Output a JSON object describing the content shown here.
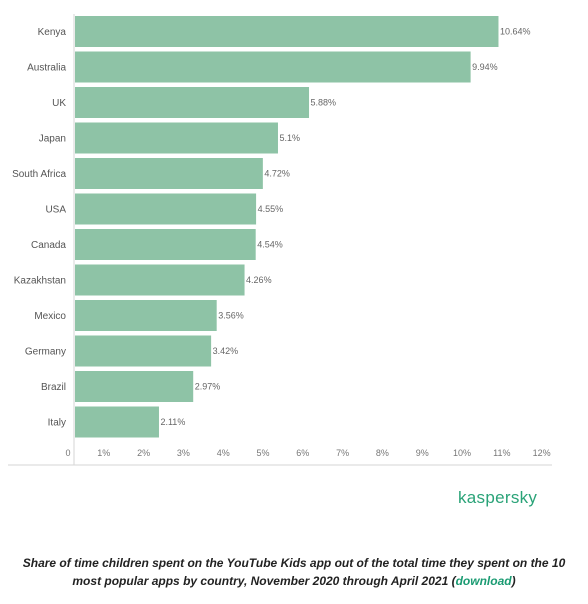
{
  "chart_data": {
    "type": "bar",
    "orientation": "horizontal",
    "categories": [
      "Kenya",
      "Australia",
      "UK",
      "Japan",
      "South Africa",
      "USA",
      "Canada",
      "Kazakhstan",
      "Mexico",
      "Germany",
      "Brazil",
      "Italy"
    ],
    "values": [
      10.64,
      9.94,
      5.88,
      5.1,
      4.72,
      4.55,
      4.54,
      4.26,
      3.56,
      3.42,
      2.97,
      2.11
    ],
    "value_labels": [
      "10.64%",
      "9.94%",
      "5.88%",
      "5.1%",
      "4.72%",
      "4.55%",
      "4.54%",
      "4.26%",
      "3.56%",
      "3.42%",
      "2.97%",
      "2.11%"
    ],
    "x_ticks": [
      "0",
      "1%",
      "2%",
      "3%",
      "4%",
      "5%",
      "6%",
      "7%",
      "8%",
      "9%",
      "10%",
      "11%",
      "12%"
    ],
    "xlim": [
      0,
      12
    ],
    "grid": false,
    "bar_color": "#8ec3a6"
  },
  "brand": "kaspersky",
  "brand_color": "#2aa378",
  "caption": {
    "text": "Share of time children spent on the YouTube Kids app out of the total time they spent on the 10 most popular apps by country, November 2020 through April 2021 (",
    "link": "download",
    "suffix": ")",
    "link_color": "#1a9b72"
  }
}
